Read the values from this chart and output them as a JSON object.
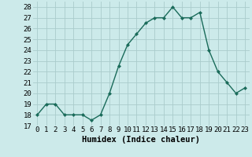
{
  "x": [
    0,
    1,
    2,
    3,
    4,
    5,
    6,
    7,
    8,
    9,
    10,
    11,
    12,
    13,
    14,
    15,
    16,
    17,
    18,
    19,
    20,
    21,
    22,
    23
  ],
  "y": [
    18,
    19,
    19,
    18,
    18,
    18,
    17.5,
    18,
    20,
    22.5,
    24.5,
    25.5,
    26.5,
    27,
    27,
    28,
    27,
    27,
    27.5,
    24,
    22,
    21,
    20,
    20.5
  ],
  "line_color": "#1a6b5a",
  "marker_color": "#1a6b5a",
  "bg_color": "#cceaea",
  "grid_color": "#aacccc",
  "xlabel": "Humidex (Indice chaleur)",
  "xlim": [
    -0.5,
    23.5
  ],
  "ylim": [
    17,
    28.5
  ],
  "yticks": [
    17,
    18,
    19,
    20,
    21,
    22,
    23,
    24,
    25,
    26,
    27,
    28
  ],
  "xtick_labels": [
    "0",
    "1",
    "2",
    "3",
    "4",
    "5",
    "6",
    "7",
    "8",
    "9",
    "10",
    "11",
    "12",
    "13",
    "14",
    "15",
    "16",
    "17",
    "18",
    "19",
    "20",
    "21",
    "22",
    "23"
  ],
  "xlabel_fontsize": 7.5,
  "tick_fontsize": 6.5
}
